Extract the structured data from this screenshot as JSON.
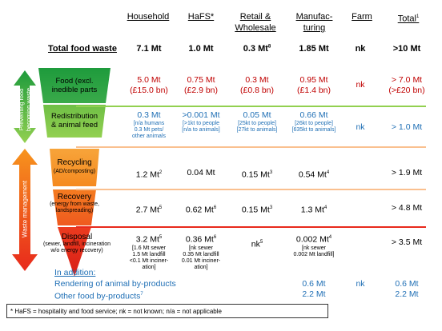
{
  "headers": {
    "household": "Household",
    "hafs": "HaFS*",
    "retail": "Retail &",
    "retail2": "Wholesale",
    "manuf": "Manufac-",
    "manuf2": "turing",
    "farm": "Farm",
    "total": "Total",
    "total_sup": "1"
  },
  "total_row": {
    "label": "Total food waste",
    "household": "7.1 Mt",
    "hafs": "1.0 Mt",
    "retail": "0.3 Mt",
    "retail_sup": "8",
    "manuf": "1.85 Mt",
    "farm": "nk",
    "total": ">10 Mt"
  },
  "side_labels": {
    "prevent": "Preventing food\nbecoming waste",
    "manage": "Waste management"
  },
  "rows": {
    "food": {
      "label": "Food (excl. inedible parts",
      "household": "5.0 Mt",
      "household2": "(£15.0 bn)",
      "hafs": "0.75 Mt",
      "hafs2": "(£2.9 bn)",
      "retail": "0.3 Mt",
      "retail2": "(£0.8 bn)",
      "manuf": "0.95 Mt",
      "manuf2": "(£1.4 bn)",
      "farm": "nk",
      "total": "> 7.0 Mt",
      "total2": "(>£20 bn)"
    },
    "redistribution": {
      "label": "Redistribution & animal feed",
      "household": "0.3 Mt",
      "household_note": "[n/a humans\n0.3 Mt pets/\nother animals",
      "hafs": ">0.001 Mt",
      "hafs_note": "[>1kt to people\n[n/a to animals]",
      "retail": "0.05 Mt",
      "retail_note": "[25kt to people]\n[27kt to animals]",
      "manuf": "0.66 Mt",
      "manuf_note": "[26kt to people]\n[635kt to animals]",
      "farm": "nk",
      "total": "> 1.0 Mt"
    },
    "recycling": {
      "label": "Recycling",
      "sublabel": "(AD/composting)",
      "household": "1.2 Mt",
      "household_sup": "2",
      "hafs": "0.04 Mt",
      "retail": "0.15 Mt",
      "retail_sup": "3",
      "manuf": "0.54 Mt",
      "manuf_sup": "4",
      "total": "> 1.9 Mt"
    },
    "recovery": {
      "label": "Recovery",
      "sublabel": "(energy from waste,\nlandspreading)",
      "household": "2.7 Mt",
      "household_sup": "5",
      "hafs": "0.62 Mt",
      "hafs_sup": "6",
      "retail": "0.15 Mt",
      "retail_sup": "3",
      "manuf": "1.3  Mt",
      "manuf_sup": "4",
      "total": "> 4.8 Mt"
    },
    "disposal": {
      "label": "Disposal",
      "sublabel": "(sewer, landfill, incineration\nw/o energy recovery)",
      "household": "3.2 Mt",
      "household_sup": "5",
      "household_note": "[1.6 Mt sewer\n1.5 Mt landfill\n<0.1 Mt inciner-\nation]",
      "hafs": "0.36 Mt",
      "hafs_sup": "6",
      "hafs_note": "[nk sewer\n0.35 Mt landfill\n0.01 Mt inciner-\nation]",
      "retail": "nk",
      "retail_sup": "5",
      "manuf": "0.002 Mt",
      "manuf_sup": "4",
      "manuf_note": "[nk sewer\n0.002 Mt landfill]",
      "total": "> 3.5 Mt"
    }
  },
  "addition": {
    "title": "In addition:",
    "rendering_label": "Rendering of animal by-products",
    "rendering_manuf": "0.6 Mt",
    "rendering_farm": "nk",
    "rendering_total": "0.6 Mt",
    "other_label": "Other food by-products",
    "other_sup": "7",
    "other_manuf": "2.2 Mt",
    "other_total": "2.2 Mt"
  },
  "footnote": "* HaFS = hospitality and food service; nk = not known; n/a = not applicable",
  "colors": {
    "green_dark": "#1e9b3c",
    "green_light": "#92d050",
    "orange": "#f7941d",
    "red": "#e8291c",
    "text_red": "#c00000",
    "text_blue": "#1f6fb5"
  }
}
